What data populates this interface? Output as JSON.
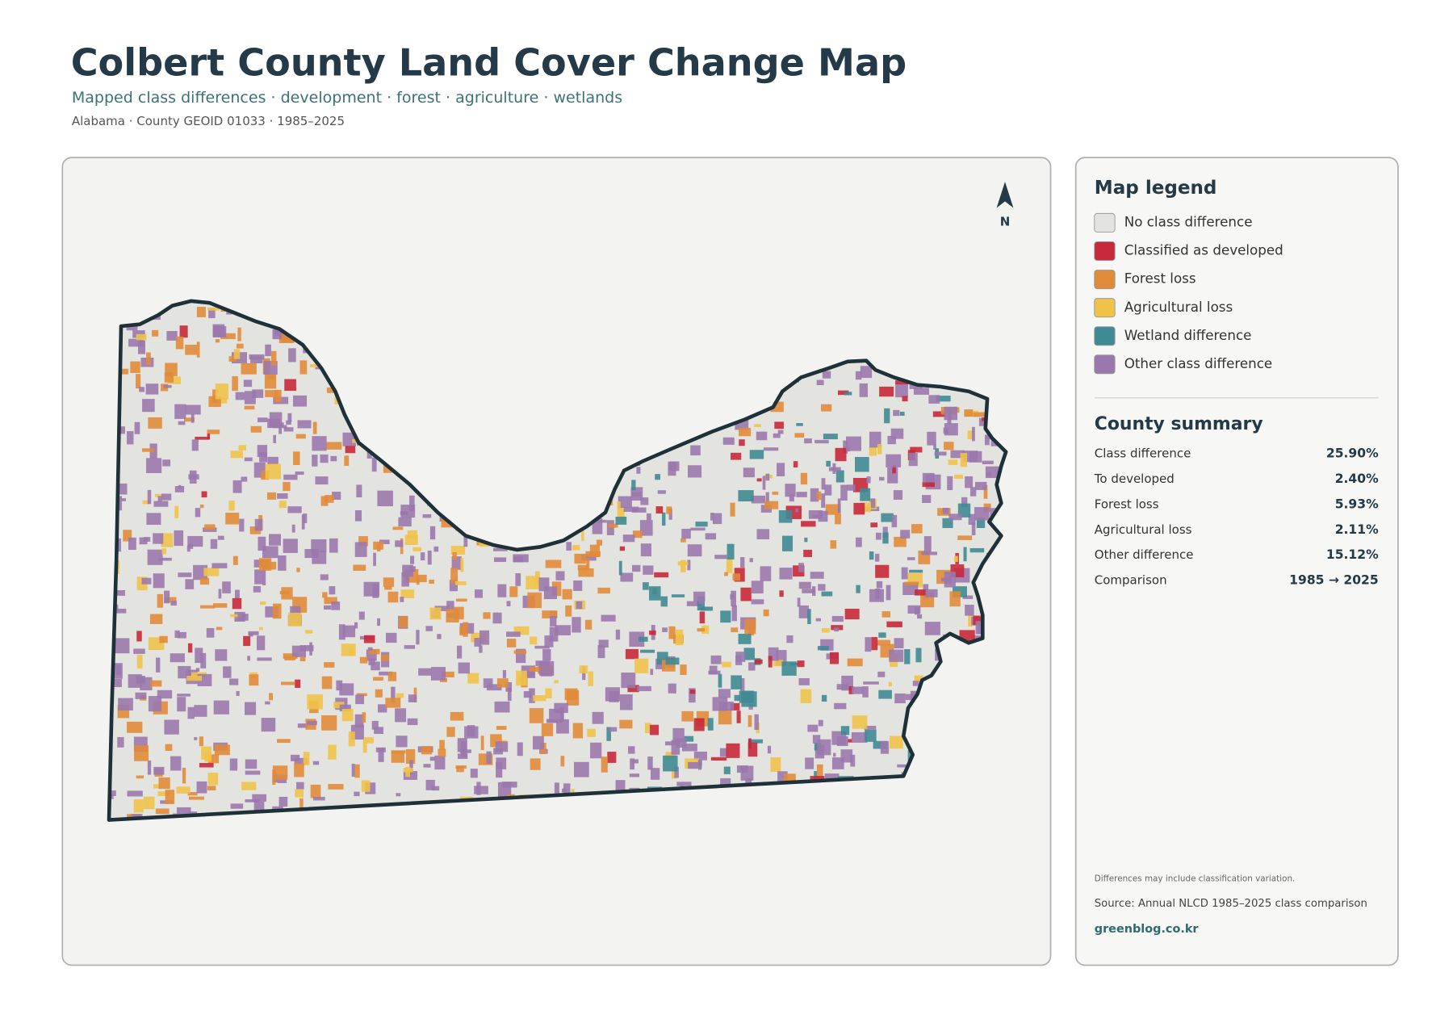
{
  "header": {
    "title": "Colbert County Land Cover Change Map",
    "subtitle": "Mapped class differences · development · forest · agriculture · wetlands",
    "meta": "Alabama · County GEOID 01033 · 1985–2025"
  },
  "map": {
    "north_label": "N"
  },
  "legend": {
    "title": "Map legend",
    "items": [
      {
        "label": "No class difference",
        "color": "#e3e3df"
      },
      {
        "label": "Classified as developed",
        "color": "#c8283a"
      },
      {
        "label": "Forest loss",
        "color": "#e08b3a"
      },
      {
        "label": "Agricultural loss",
        "color": "#f0c24a"
      },
      {
        "label": "Wetland difference",
        "color": "#3f8a94"
      },
      {
        "label": "Other class difference",
        "color": "#9a78ad"
      }
    ]
  },
  "summary": {
    "title": "County summary",
    "rows": [
      {
        "label": "Class difference",
        "value": "25.90%"
      },
      {
        "label": "To developed",
        "value": "2.40%"
      },
      {
        "label": "Forest loss",
        "value": "5.93%"
      },
      {
        "label": "Agricultural loss",
        "value": "2.11%"
      },
      {
        "label": "Other difference",
        "value": "15.12%"
      },
      {
        "label": "Comparison",
        "value": "1985 → 2025"
      }
    ]
  },
  "notes": {
    "caveat": "Differences may include classification variation.",
    "source": "Source: Annual NLCD 1985–2025 class comparison",
    "site": "greenblog.co.kr"
  }
}
